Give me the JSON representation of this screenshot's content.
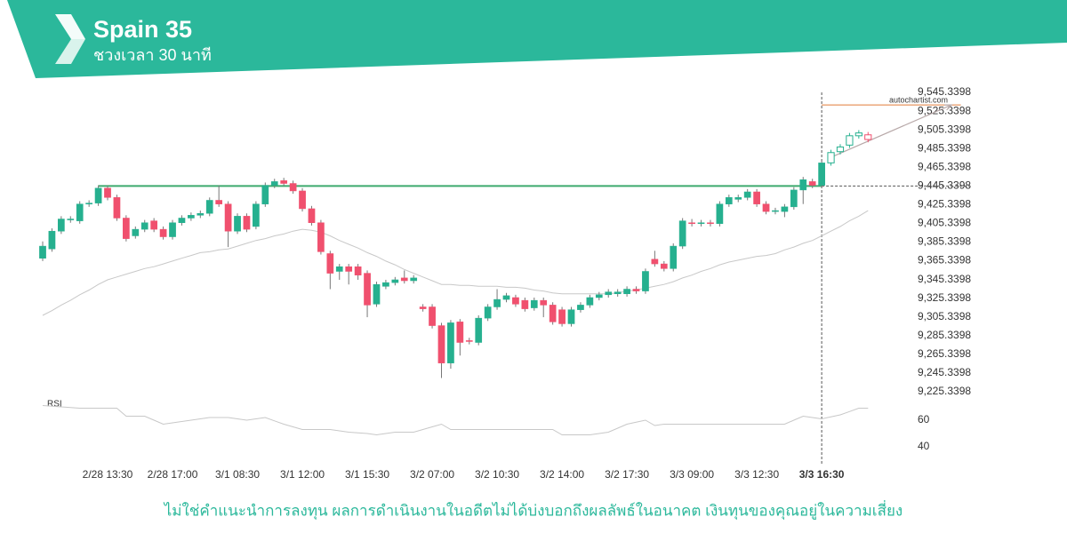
{
  "header": {
    "title": "Spain 35",
    "subtitle": "ชวงเวลา 30 นาที"
  },
  "footer": {
    "disclaimer": "ไม่ใช่คำแนะนำการลงทุน ผลการดำเนินงานในอดีตไม่ได้บ่งบอกถึงผลลัพธ์ในอนาคต เงินทุนของคุณอยู่ในความเสี่ยง"
  },
  "chart_data": {
    "type": "candlestick",
    "source": "autochartist.com",
    "categories": [
      null,
      null,
      null,
      null,
      null,
      null,
      null,
      "2/28 13:30",
      null,
      null,
      null,
      null,
      null,
      null,
      "2/28 17:00",
      null,
      null,
      null,
      null,
      null,
      null,
      "3/1 08:30",
      null,
      null,
      null,
      null,
      null,
      null,
      "3/1 12:00",
      null,
      null,
      null,
      null,
      null,
      null,
      "3/1 15:30",
      null,
      null,
      null,
      null,
      null,
      null,
      "3/2 07:00",
      null,
      null,
      null,
      null,
      null,
      null,
      "3/2 10:30",
      null,
      null,
      null,
      null,
      null,
      null,
      "3/2 14:00",
      null,
      null,
      null,
      null,
      null,
      null,
      "3/2 17:30",
      null,
      null,
      null,
      null,
      null,
      null,
      "3/3 09:00",
      null,
      null,
      null,
      null,
      null,
      null,
      "3/3 12:30",
      null,
      null,
      null,
      null,
      null,
      null,
      "3/3 16:30",
      null,
      null,
      null,
      null,
      null
    ],
    "open": [
      9368,
      9378,
      9397,
      9409,
      9408,
      9426,
      9427,
      9443,
      9433,
      9411,
      9392,
      9399,
      9408,
      9399,
      9391,
      9406,
      9411,
      9414,
      9416,
      9430,
      9426,
      9397,
      9413,
      9402,
      9426,
      9446,
      9451,
      9448,
      9440,
      9421,
      9406,
      9373,
      9354,
      9359,
      9359,
      9352,
      9319,
      9338,
      9342,
      9347,
      9344,
      9316,
      9316,
      9296,
      9256,
      9300,
      9280,
      9278,
      9304,
      9316,
      9324,
      9326,
      9323,
      9315,
      9323,
      9318,
      9313,
      9298,
      9313,
      9318,
      9326,
      9329,
      9330,
      9330,
      9335,
      9333,
      9367,
      9362,
      9357,
      9381,
      9406,
      9405,
      9406,
      9405,
      9426,
      9431,
      9433,
      9439,
      9426,
      9418,
      9418,
      9423,
      9441,
      9450,
      9446,
      9470,
      9482,
      9489,
      9499,
      9500
    ],
    "high": [
      9386,
      9400,
      9413,
      9413,
      9429,
      9430,
      9446,
      9446,
      9436,
      9414,
      9402,
      9409,
      9411,
      9402,
      9409,
      9414,
      9417,
      9419,
      9433,
      9446,
      9429,
      9416,
      9416,
      9429,
      9449,
      9453,
      9454,
      9451,
      9443,
      9424,
      9409,
      9376,
      9362,
      9362,
      9362,
      9355,
      9343,
      9345,
      9348,
      9355,
      9350,
      9319,
      9319,
      9299,
      9302,
      9303,
      9283,
      9307,
      9319,
      9335,
      9331,
      9329,
      9326,
      9326,
      9326,
      9321,
      9316,
      9316,
      9321,
      9329,
      9332,
      9335,
      9335,
      9338,
      9338,
      9357,
      9376,
      9365,
      9384,
      9411,
      9410,
      9409,
      9409,
      9429,
      9436,
      9436,
      9442,
      9442,
      9429,
      9422,
      9426,
      9444,
      9455,
      9453,
      9473,
      9484,
      9490,
      9502,
      9505,
      9503
    ],
    "low": [
      9365,
      9375,
      9394,
      9406,
      9405,
      9423,
      9424,
      9430,
      9408,
      9386,
      9389,
      9396,
      9396,
      9388,
      9388,
      9403,
      9408,
      9411,
      9413,
      9423,
      9380,
      9394,
      9396,
      9399,
      9423,
      9443,
      9445,
      9437,
      9418,
      9403,
      9372,
      9335,
      9345,
      9340,
      9345,
      9305,
      9316,
      9335,
      9339,
      9341,
      9341,
      9311,
      9293,
      9240,
      9250,
      9264,
      9276,
      9275,
      9301,
      9313,
      9321,
      9316,
      9311,
      9312,
      9305,
      9297,
      9295,
      9295,
      9310,
      9315,
      9323,
      9326,
      9327,
      9327,
      9330,
      9330,
      9359,
      9354,
      9354,
      9378,
      9402,
      9402,
      9402,
      9402,
      9423,
      9428,
      9430,
      9423,
      9415,
      9415,
      9412,
      9420,
      9426,
      9443,
      9443,
      9467,
      9479,
      9486,
      9496,
      9492
    ],
    "close": [
      9381,
      9397,
      9410,
      9410,
      9426,
      9427,
      9443,
      9433,
      9411,
      9389,
      9399,
      9406,
      9399,
      9391,
      9406,
      9411,
      9414,
      9416,
      9430,
      9426,
      9397,
      9413,
      9399,
      9426,
      9446,
      9450,
      9448,
      9440,
      9421,
      9406,
      9375,
      9352,
      9359,
      9354,
      9350,
      9318,
      9340,
      9342,
      9345,
      9344,
      9347,
      9314,
      9296,
      9256,
      9299,
      9278,
      9279,
      9304,
      9316,
      9324,
      9328,
      9319,
      9314,
      9323,
      9318,
      9300,
      9298,
      9313,
      9318,
      9326,
      9329,
      9332,
      9332,
      9335,
      9333,
      9354,
      9362,
      9357,
      9381,
      9408,
      9405,
      9406,
      9405,
      9426,
      9433,
      9433,
      9439,
      9426,
      9418,
      9419,
      9423,
      9441,
      9452,
      9446,
      9470,
      9481,
      9487,
      9499,
      9502,
      9495
    ],
    "up_color": "#26b08f",
    "down_color": "#f0506e",
    "hollow_from": 85,
    "ma": {
      "color": "#c8c8c8",
      "values": [
        9307,
        9312,
        9318,
        9323,
        9329,
        9334,
        9340,
        9345,
        9348,
        9351,
        9354,
        9357,
        9359,
        9362,
        9365,
        9368,
        9371,
        9374,
        9375,
        9377,
        9378,
        9381,
        9384,
        9387,
        9389,
        9392,
        9394,
        9397,
        9399,
        9398,
        9396,
        9392,
        9387,
        9383,
        9379,
        9374,
        9370,
        9365,
        9361,
        9356,
        9352,
        9348,
        9344,
        9340,
        9340,
        9339,
        9339,
        9338,
        9338,
        9338,
        9337,
        9337,
        9336,
        9334,
        9333,
        9331,
        9330,
        9330,
        9330,
        9330,
        9330,
        9330,
        9331,
        9333,
        9334,
        9336,
        9338,
        9340,
        9343,
        9347,
        9350,
        9354,
        9357,
        9361,
        9364,
        9366,
        9368,
        9370,
        9371,
        9373,
        9377,
        9380,
        9384,
        9387,
        9392,
        9397,
        9402,
        9408,
        9413,
        9419
      ]
    },
    "ylim": [
      9214,
      9556
    ],
    "yticks": [
      {
        "value": 9545.3398,
        "label": "9,545.3398"
      },
      {
        "value": 9525.3398,
        "label": "9,525.3398"
      },
      {
        "value": 9505.3398,
        "label": "9,505.3398"
      },
      {
        "value": 9485.3398,
        "label": "9,485.3398"
      },
      {
        "value": 9465.3398,
        "label": "9,465.3398"
      },
      {
        "value": 9445.3398,
        "label": "9,445.3398"
      },
      {
        "value": 9425.3398,
        "label": "9,425.3398"
      },
      {
        "value": 9405.3398,
        "label": "9,405.3398"
      },
      {
        "value": 9385.3398,
        "label": "9,385.3398"
      },
      {
        "value": 9365.3398,
        "label": "9,365.3398"
      },
      {
        "value": 9345.3398,
        "label": "9,345.3398"
      },
      {
        "value": 9325.3398,
        "label": "9,325.3398"
      },
      {
        "value": 9305.3398,
        "label": "9,305.3398"
      },
      {
        "value": 9285.3398,
        "label": "9,285.3398"
      },
      {
        "value": 9265.3398,
        "label": "9,265.3398"
      },
      {
        "value": 9245.3398,
        "label": "9,245.3398"
      },
      {
        "value": 9225.3398,
        "label": "9,225.3398"
      }
    ],
    "resistance": {
      "value": 9445.3398,
      "from": 6,
      "to": 84,
      "color": "#3daa6e"
    },
    "target": {
      "value": 9532,
      "from": 84,
      "to": 99,
      "color": "#e07b39"
    },
    "trend": {
      "from": {
        "index": 85,
        "value": 9476
      },
      "to": {
        "index": 98,
        "value": 9532
      },
      "color": "#b8a9a9"
    },
    "marker_index": 84,
    "rsi": {
      "label": "RSI",
      "color": "#c8c8c8",
      "ylim": [
        30,
        80
      ],
      "yticks": [
        60,
        40
      ],
      "values": [
        71,
        70.5,
        70,
        69.5,
        69,
        69,
        69,
        69,
        69,
        63,
        63,
        63,
        60,
        57,
        58,
        59,
        60,
        61,
        62,
        62,
        62,
        61,
        60,
        61,
        62,
        59.5,
        57,
        55,
        53,
        53,
        53,
        53,
        52,
        51,
        50.5,
        50,
        49,
        50,
        51,
        51,
        51,
        53,
        55,
        57,
        53,
        53,
        53,
        53,
        53,
        53,
        53,
        53,
        53,
        53,
        53,
        53,
        49,
        49,
        49,
        49,
        50,
        51,
        54,
        57,
        58.5,
        60,
        56,
        57,
        57,
        57,
        57,
        57,
        57,
        57,
        57,
        57,
        57,
        57,
        57,
        57,
        57,
        60,
        63,
        62,
        61,
        62.5,
        64,
        66.5,
        69,
        69
      ]
    }
  }
}
